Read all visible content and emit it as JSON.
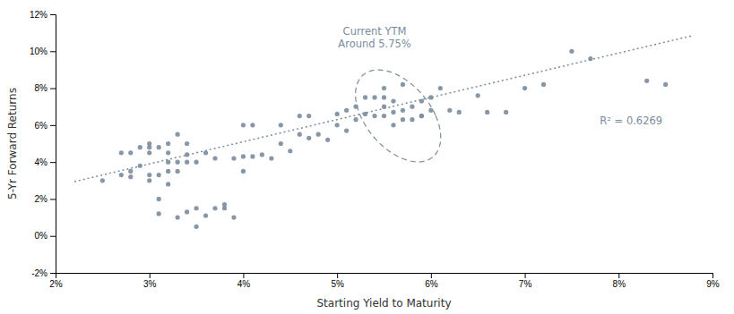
{
  "chart_data": {
    "type": "scatter",
    "xlabel": "Starting Yield to Maturity",
    "ylabel": "5-Yr Forward Returns",
    "xlim": [
      0.02,
      0.09
    ],
    "ylim": [
      -0.02,
      0.12
    ],
    "xticks": [
      {
        "value": 0.02,
        "label": "2%"
      },
      {
        "value": 0.03,
        "label": "3%"
      },
      {
        "value": 0.04,
        "label": "4%"
      },
      {
        "value": 0.05,
        "label": "5%"
      },
      {
        "value": 0.06,
        "label": "6%"
      },
      {
        "value": 0.07,
        "label": "7%"
      },
      {
        "value": 0.08,
        "label": "8%"
      },
      {
        "value": 0.09,
        "label": "9%"
      }
    ],
    "yticks": [
      {
        "value": -0.02,
        "label": "-2%"
      },
      {
        "value": 0.0,
        "label": "0%"
      },
      {
        "value": 0.02,
        "label": "2%"
      },
      {
        "value": 0.04,
        "label": "4%"
      },
      {
        "value": 0.06,
        "label": "6%"
      },
      {
        "value": 0.08,
        "label": "8%"
      },
      {
        "value": 0.1,
        "label": "10%"
      },
      {
        "value": 0.12,
        "label": "12%"
      }
    ],
    "grid": false,
    "series": [
      {
        "type": "scatter",
        "marker": "circle",
        "color": "#7a8c9e",
        "x": [
          0.025,
          0.027,
          0.027,
          0.028,
          0.028,
          0.028,
          0.029,
          0.029,
          0.03,
          0.03,
          0.03,
          0.03,
          0.03,
          0.031,
          0.031,
          0.031,
          0.031,
          0.032,
          0.032,
          0.032,
          0.032,
          0.032,
          0.033,
          0.033,
          0.033,
          0.033,
          0.034,
          0.034,
          0.034,
          0.034,
          0.035,
          0.035,
          0.035,
          0.036,
          0.036,
          0.037,
          0.037,
          0.038,
          0.038,
          0.039,
          0.039,
          0.04,
          0.04,
          0.04,
          0.041,
          0.041,
          0.042,
          0.043,
          0.044,
          0.044,
          0.045,
          0.046,
          0.046,
          0.047,
          0.047,
          0.048,
          0.049,
          0.05,
          0.05,
          0.051,
          0.051,
          0.052,
          0.052,
          0.053,
          0.053,
          0.054,
          0.054,
          0.055,
          0.055,
          0.055,
          0.055,
          0.056,
          0.056,
          0.056,
          0.057,
          0.057,
          0.057,
          0.058,
          0.058,
          0.059,
          0.059,
          0.059,
          0.06,
          0.06,
          0.061,
          0.062,
          0.063,
          0.065,
          0.066,
          0.068,
          0.07,
          0.072,
          0.075,
          0.077,
          0.083,
          0.085
        ],
        "values": [
          0.03,
          0.033,
          0.045,
          0.032,
          0.035,
          0.045,
          0.038,
          0.048,
          0.03,
          0.033,
          0.045,
          0.05,
          0.048,
          0.02,
          0.012,
          0.033,
          0.048,
          0.028,
          0.035,
          0.04,
          0.045,
          0.05,
          0.01,
          0.035,
          0.04,
          0.055,
          0.04,
          0.044,
          0.013,
          0.05,
          0.005,
          0.015,
          0.04,
          0.011,
          0.045,
          0.015,
          0.042,
          0.015,
          0.017,
          0.01,
          0.042,
          0.035,
          0.043,
          0.06,
          0.043,
          0.06,
          0.044,
          0.042,
          0.05,
          0.06,
          0.046,
          0.055,
          0.065,
          0.053,
          0.065,
          0.055,
          0.052,
          0.06,
          0.066,
          0.057,
          0.068,
          0.063,
          0.07,
          0.066,
          0.075,
          0.065,
          0.075,
          0.065,
          0.07,
          0.075,
          0.08,
          0.06,
          0.067,
          0.073,
          0.063,
          0.068,
          0.082,
          0.063,
          0.07,
          0.065,
          0.073,
          0.065,
          0.068,
          0.075,
          0.08,
          0.068,
          0.067,
          0.076,
          0.067,
          0.067,
          0.08,
          0.082,
          0.1,
          0.096,
          0.084,
          0.082
        ]
      },
      {
        "type": "line",
        "line_style": "dotted",
        "color": "#7a8c9e",
        "x": [
          0.022,
          0.088
        ],
        "values": [
          0.0294,
          0.1086
        ]
      }
    ],
    "shapes": [
      {
        "type": "ellipse",
        "line_style": "dashed",
        "color": "#7a8c9e",
        "cx": 0.0565,
        "cy": 0.065,
        "width": 0.008,
        "height": 0.05,
        "angle": 5
      }
    ],
    "annotations": [
      {
        "text": "R² = 0.6269",
        "x": 0.078,
        "y": 0.062
      },
      {
        "text": "Current YTM\nAround 5.75%",
        "x": 0.054,
        "y": 0.1
      }
    ]
  }
}
